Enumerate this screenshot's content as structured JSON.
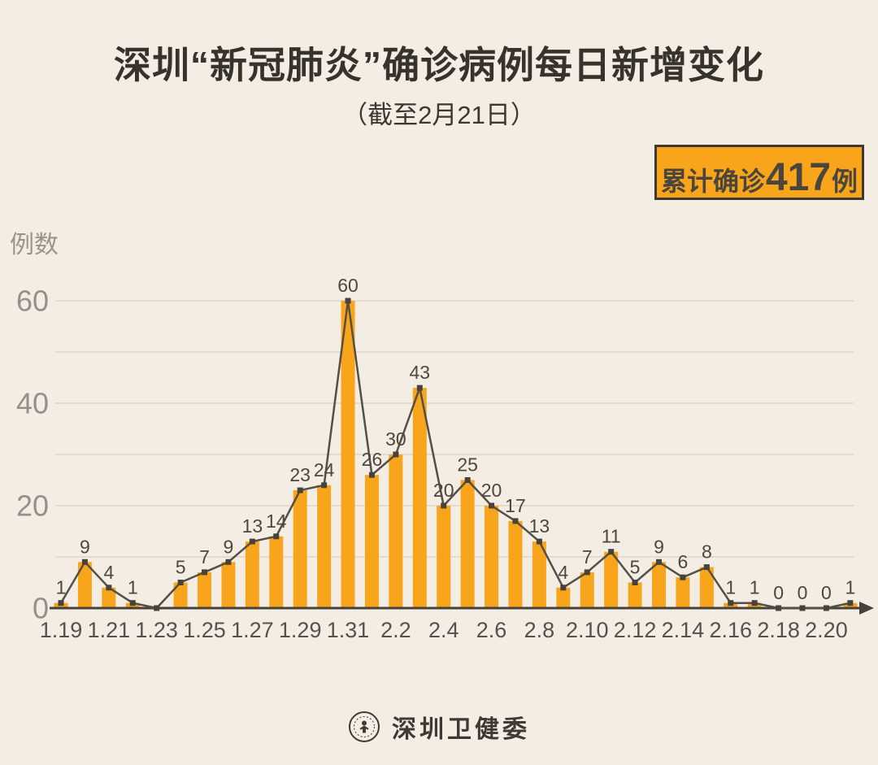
{
  "header": {
    "title": "深圳“新冠肺炎”确诊病例每日新增变化",
    "subtitle": "（截至2月21日）"
  },
  "badge": {
    "prefix": "累计确诊",
    "number": "417",
    "suffix": "例"
  },
  "footer": {
    "org_name": "深圳卫健委",
    "logo": "shenzhen-health-commission-seal"
  },
  "colors": {
    "background": "#F4EDE4",
    "bar": "#F9A51B",
    "line": "#544F47",
    "marker": "#47433C",
    "axis": "#46423B",
    "grid": "#E3DAD0",
    "value_label": "#4C473F",
    "x_tick_label": "#56524B",
    "y_tick_label": "#96908A",
    "title_text": "#37332C",
    "badge_fill": "#F9A51B",
    "badge_border": "#3E3A33",
    "badge_text": "#4A453D"
  },
  "chart_data": {
    "type": "bar",
    "subtype": "bar-with-line-overlay",
    "title": "深圳“新冠肺炎”确诊病例每日新增变化（截至2月21日）",
    "xlabel": "",
    "ylabel": "例数",
    "categories": [
      "1.19",
      "1.20",
      "1.21",
      "1.22",
      "1.23",
      "1.24",
      "1.25",
      "1.26",
      "1.27",
      "1.28",
      "1.29",
      "1.30",
      "1.31",
      "2.1",
      "2.2",
      "2.3",
      "2.4",
      "2.5",
      "2.6",
      "2.7",
      "2.8",
      "2.9",
      "2.10",
      "2.11",
      "2.12",
      "2.13",
      "2.14",
      "2.15",
      "2.16",
      "2.17",
      "2.18",
      "2.19",
      "2.20",
      "2.21"
    ],
    "values": [
      1,
      9,
      4,
      1,
      0,
      5,
      7,
      9,
      13,
      14,
      23,
      24,
      60,
      26,
      30,
      43,
      20,
      25,
      20,
      17,
      13,
      4,
      7,
      11,
      5,
      9,
      6,
      8,
      1,
      1,
      0,
      0,
      0,
      1
    ],
    "ylim": [
      0,
      66
    ],
    "y_ticks": [
      0,
      20,
      40,
      60
    ],
    "grid": true,
    "grid_step": 10,
    "x_tick_every": 2,
    "hide_value_label_at": [
      "1.23"
    ],
    "x_axis_arrow": true,
    "legend": "none",
    "cumulative_total_shown_in_badge": 417
  }
}
